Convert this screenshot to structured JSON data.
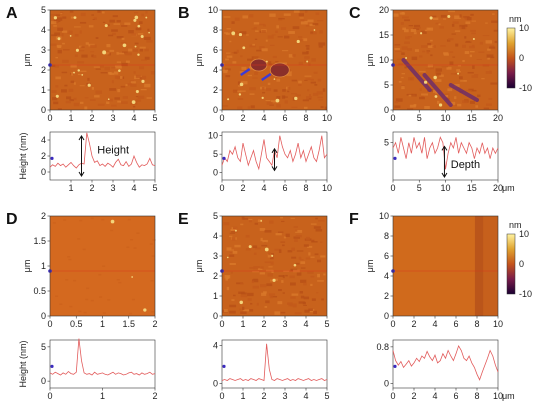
{
  "panels": [
    {
      "label": "A",
      "image": {
        "x_ticks": [
          "0",
          "1",
          "2",
          "3",
          "4",
          "5"
        ],
        "y_ticks": [
          "0",
          "1",
          "2",
          "3",
          "4",
          "5"
        ],
        "y_unit": "μm",
        "colorbar": false,
        "texture": "afm",
        "features": {
          "specks": 26,
          "blobs": []
        }
      },
      "profile": {
        "x_ticks": [
          "1",
          "2",
          "3",
          "4",
          "5"
        ],
        "y_ticks": [
          "0",
          "2",
          "4"
        ],
        "y_label": "Height (nm)",
        "x_unit": "",
        "xlim": [
          0,
          5
        ],
        "ylim": [
          -1,
          5
        ],
        "annotation": "Height",
        "arrow": "height",
        "y": [
          0.6,
          0.9,
          0.7,
          1.1,
          0.8,
          1.0,
          0.6,
          0.9,
          1.2,
          0.8,
          0.5,
          0.9,
          1.1,
          1.0,
          4.9,
          3.6,
          2.0,
          1.2,
          1.4,
          0.8,
          1.0,
          0.7,
          1.1,
          0.9,
          0.6,
          1.2,
          1.6,
          0.9,
          0.8,
          1.3,
          0.7,
          1.0,
          2.0,
          1.2,
          0.6,
          0.9,
          0.8,
          1.0,
          1.7,
          0.9,
          0.8
        ]
      }
    },
    {
      "label": "B",
      "image": {
        "x_ticks": [
          "0",
          "2",
          "4",
          "6",
          "8",
          "10"
        ],
        "y_ticks": [
          "0",
          "2",
          "4",
          "6",
          "8",
          "10"
        ],
        "y_unit": "μm",
        "colorbar": false,
        "texture": "afm",
        "features": {
          "specks": 14,
          "blobs": [
            {
              "cx": 0.35,
              "cy": 0.55,
              "r": 0.06
            },
            {
              "cx": 0.55,
              "cy": 0.6,
              "r": 0.07
            }
          ]
        }
      },
      "profile": {
        "x_ticks": [
          "0",
          "2",
          "4",
          "6",
          "8",
          "10"
        ],
        "y_ticks": [
          "0",
          "5",
          "10"
        ],
        "y_label": "",
        "x_unit": "",
        "xlim": [
          0,
          10
        ],
        "ylim": [
          -2,
          11
        ],
        "annotation": "",
        "arrow": "height",
        "y": [
          2,
          4,
          3,
          6,
          5,
          7,
          4,
          3,
          8,
          5,
          2,
          4,
          6,
          3,
          1,
          5,
          9,
          4,
          3,
          2,
          6,
          4,
          10,
          7,
          5,
          4,
          6,
          3,
          5,
          8,
          4,
          6,
          3,
          5,
          7,
          4,
          3,
          6,
          10,
          4,
          5
        ]
      }
    },
    {
      "label": "C",
      "image": {
        "x_ticks": [
          "0",
          "5",
          "10",
          "15",
          "20"
        ],
        "y_ticks": [
          "0",
          "5",
          "10",
          "15",
          "20"
        ],
        "y_unit": "μm",
        "colorbar": true,
        "cb_unit": "nm",
        "cb_ticks": [
          "10",
          "0",
          "-10"
        ],
        "texture": "afm",
        "features": {
          "specks": 10,
          "blobs": [],
          "streaks": true
        }
      },
      "profile": {
        "x_ticks": [
          "0",
          "5",
          "10",
          "15",
          "20"
        ],
        "y_ticks": [
          "5"
        ],
        "y_label": "",
        "x_unit": "μm",
        "xlim": [
          0,
          20
        ],
        "ylim": [
          -2,
          7
        ],
        "annotation": "Depth",
        "arrow": "depth",
        "y": [
          4,
          5,
          3,
          6,
          4,
          2,
          5,
          3,
          6,
          4,
          5,
          3,
          6,
          2,
          4,
          5,
          3,
          4,
          6,
          5,
          0,
          3,
          5,
          4,
          6,
          3,
          5,
          4,
          3,
          5,
          4,
          2,
          4,
          3,
          5,
          3,
          4,
          2,
          4,
          3,
          4
        ]
      }
    },
    {
      "label": "D",
      "image": {
        "x_ticks": [
          "0",
          "0.5",
          "1",
          "1.5",
          "2"
        ],
        "y_ticks": [
          "0",
          "0.5",
          "1",
          "1.5",
          "2"
        ],
        "y_unit": "μm",
        "colorbar": false,
        "texture": "flat",
        "features": {
          "specks": 3,
          "blobs": []
        }
      },
      "profile": {
        "x_ticks": [
          "0",
          "1",
          "2"
        ],
        "y_ticks": [
          "0",
          "5"
        ],
        "y_label": "Height (nm)",
        "x_unit": "",
        "xlim": [
          0,
          2
        ],
        "ylim": [
          -1,
          6
        ],
        "annotation": "",
        "arrow": "",
        "y": [
          1.2,
          1.0,
          1.3,
          1.1,
          0.9,
          1.2,
          1.0,
          1.4,
          1.1,
          1.0,
          1.3,
          6.2,
          3.0,
          1.2,
          1.0,
          1.1,
          0.9,
          1.3,
          1.0,
          1.1,
          1.2,
          1.0,
          0.9,
          1.1,
          1.3,
          1.0,
          1.2,
          1.1,
          0.9,
          1.0,
          1.2,
          1.3,
          1.0,
          1.1,
          0.9,
          1.2,
          1.0,
          1.1,
          1.3,
          1.0,
          1.1
        ]
      }
    },
    {
      "label": "E",
      "image": {
        "x_ticks": [
          "0",
          "1",
          "2",
          "3",
          "4",
          "5"
        ],
        "y_ticks": [
          "0",
          "1",
          "2",
          "3",
          "4",
          "5"
        ],
        "y_unit": "μm",
        "colorbar": false,
        "texture": "afm",
        "features": {
          "specks": 9,
          "blobs": []
        }
      },
      "profile": {
        "x_ticks": [
          "0",
          "1",
          "2",
          "3",
          "4",
          "5"
        ],
        "y_ticks": [
          "0",
          "4"
        ],
        "y_label": "",
        "x_unit": "",
        "xlim": [
          0,
          5
        ],
        "ylim": [
          -0.5,
          4.6
        ],
        "annotation": "",
        "arrow": "",
        "y": [
          0.3,
          0.4,
          0.3,
          0.5,
          0.4,
          0.3,
          0.4,
          0.5,
          0.3,
          0.4,
          0.3,
          0.5,
          0.4,
          0.3,
          0.5,
          0.4,
          0.3,
          4.2,
          1.5,
          0.4,
          0.3,
          0.5,
          0.4,
          0.3,
          0.4,
          0.5,
          0.3,
          0.4,
          0.3,
          0.5,
          0.4,
          0.3,
          0.4,
          0.5,
          0.3,
          0.4,
          0.3,
          0.4,
          0.5,
          0.3,
          0.4
        ]
      }
    },
    {
      "label": "F",
      "image": {
        "x_ticks": [
          "0",
          "2",
          "4",
          "6",
          "8",
          "10"
        ],
        "y_ticks": [
          "0",
          "2",
          "4",
          "6",
          "8",
          "10"
        ],
        "y_unit": "μm",
        "colorbar": true,
        "cb_unit": "nm",
        "cb_ticks": [
          "10",
          "0",
          "-10"
        ],
        "texture": "banded",
        "features": {
          "specks": 0,
          "blobs": []
        }
      },
      "profile": {
        "x_ticks": [
          "0",
          "2",
          "4",
          "6",
          "8",
          "10"
        ],
        "y_ticks": [
          "0",
          "0.8"
        ],
        "y_label": "",
        "x_unit": "μm",
        "xlim": [
          0,
          10
        ],
        "ylim": [
          -0.1,
          0.95
        ],
        "annotation": "",
        "arrow": "",
        "y": [
          0.72,
          0.5,
          0.4,
          0.48,
          0.35,
          0.42,
          0.5,
          0.38,
          0.45,
          0.55,
          0.48,
          0.6,
          0.55,
          0.7,
          0.58,
          0.5,
          0.62,
          0.45,
          0.5,
          0.65,
          0.55,
          0.72,
          0.6,
          0.5,
          0.65,
          0.82,
          0.72,
          0.55,
          0.5,
          0.6,
          0.45,
          0.35,
          0.2,
          0.08,
          0.25,
          0.4,
          0.55,
          0.72,
          0.6,
          0.4,
          0.25
        ]
      }
    }
  ],
  "colors": {
    "profile_line": "#e25b5b",
    "marker": "#3b2bbf",
    "arrow": "#111111",
    "blob_arrow": "#3b3bd6"
  }
}
